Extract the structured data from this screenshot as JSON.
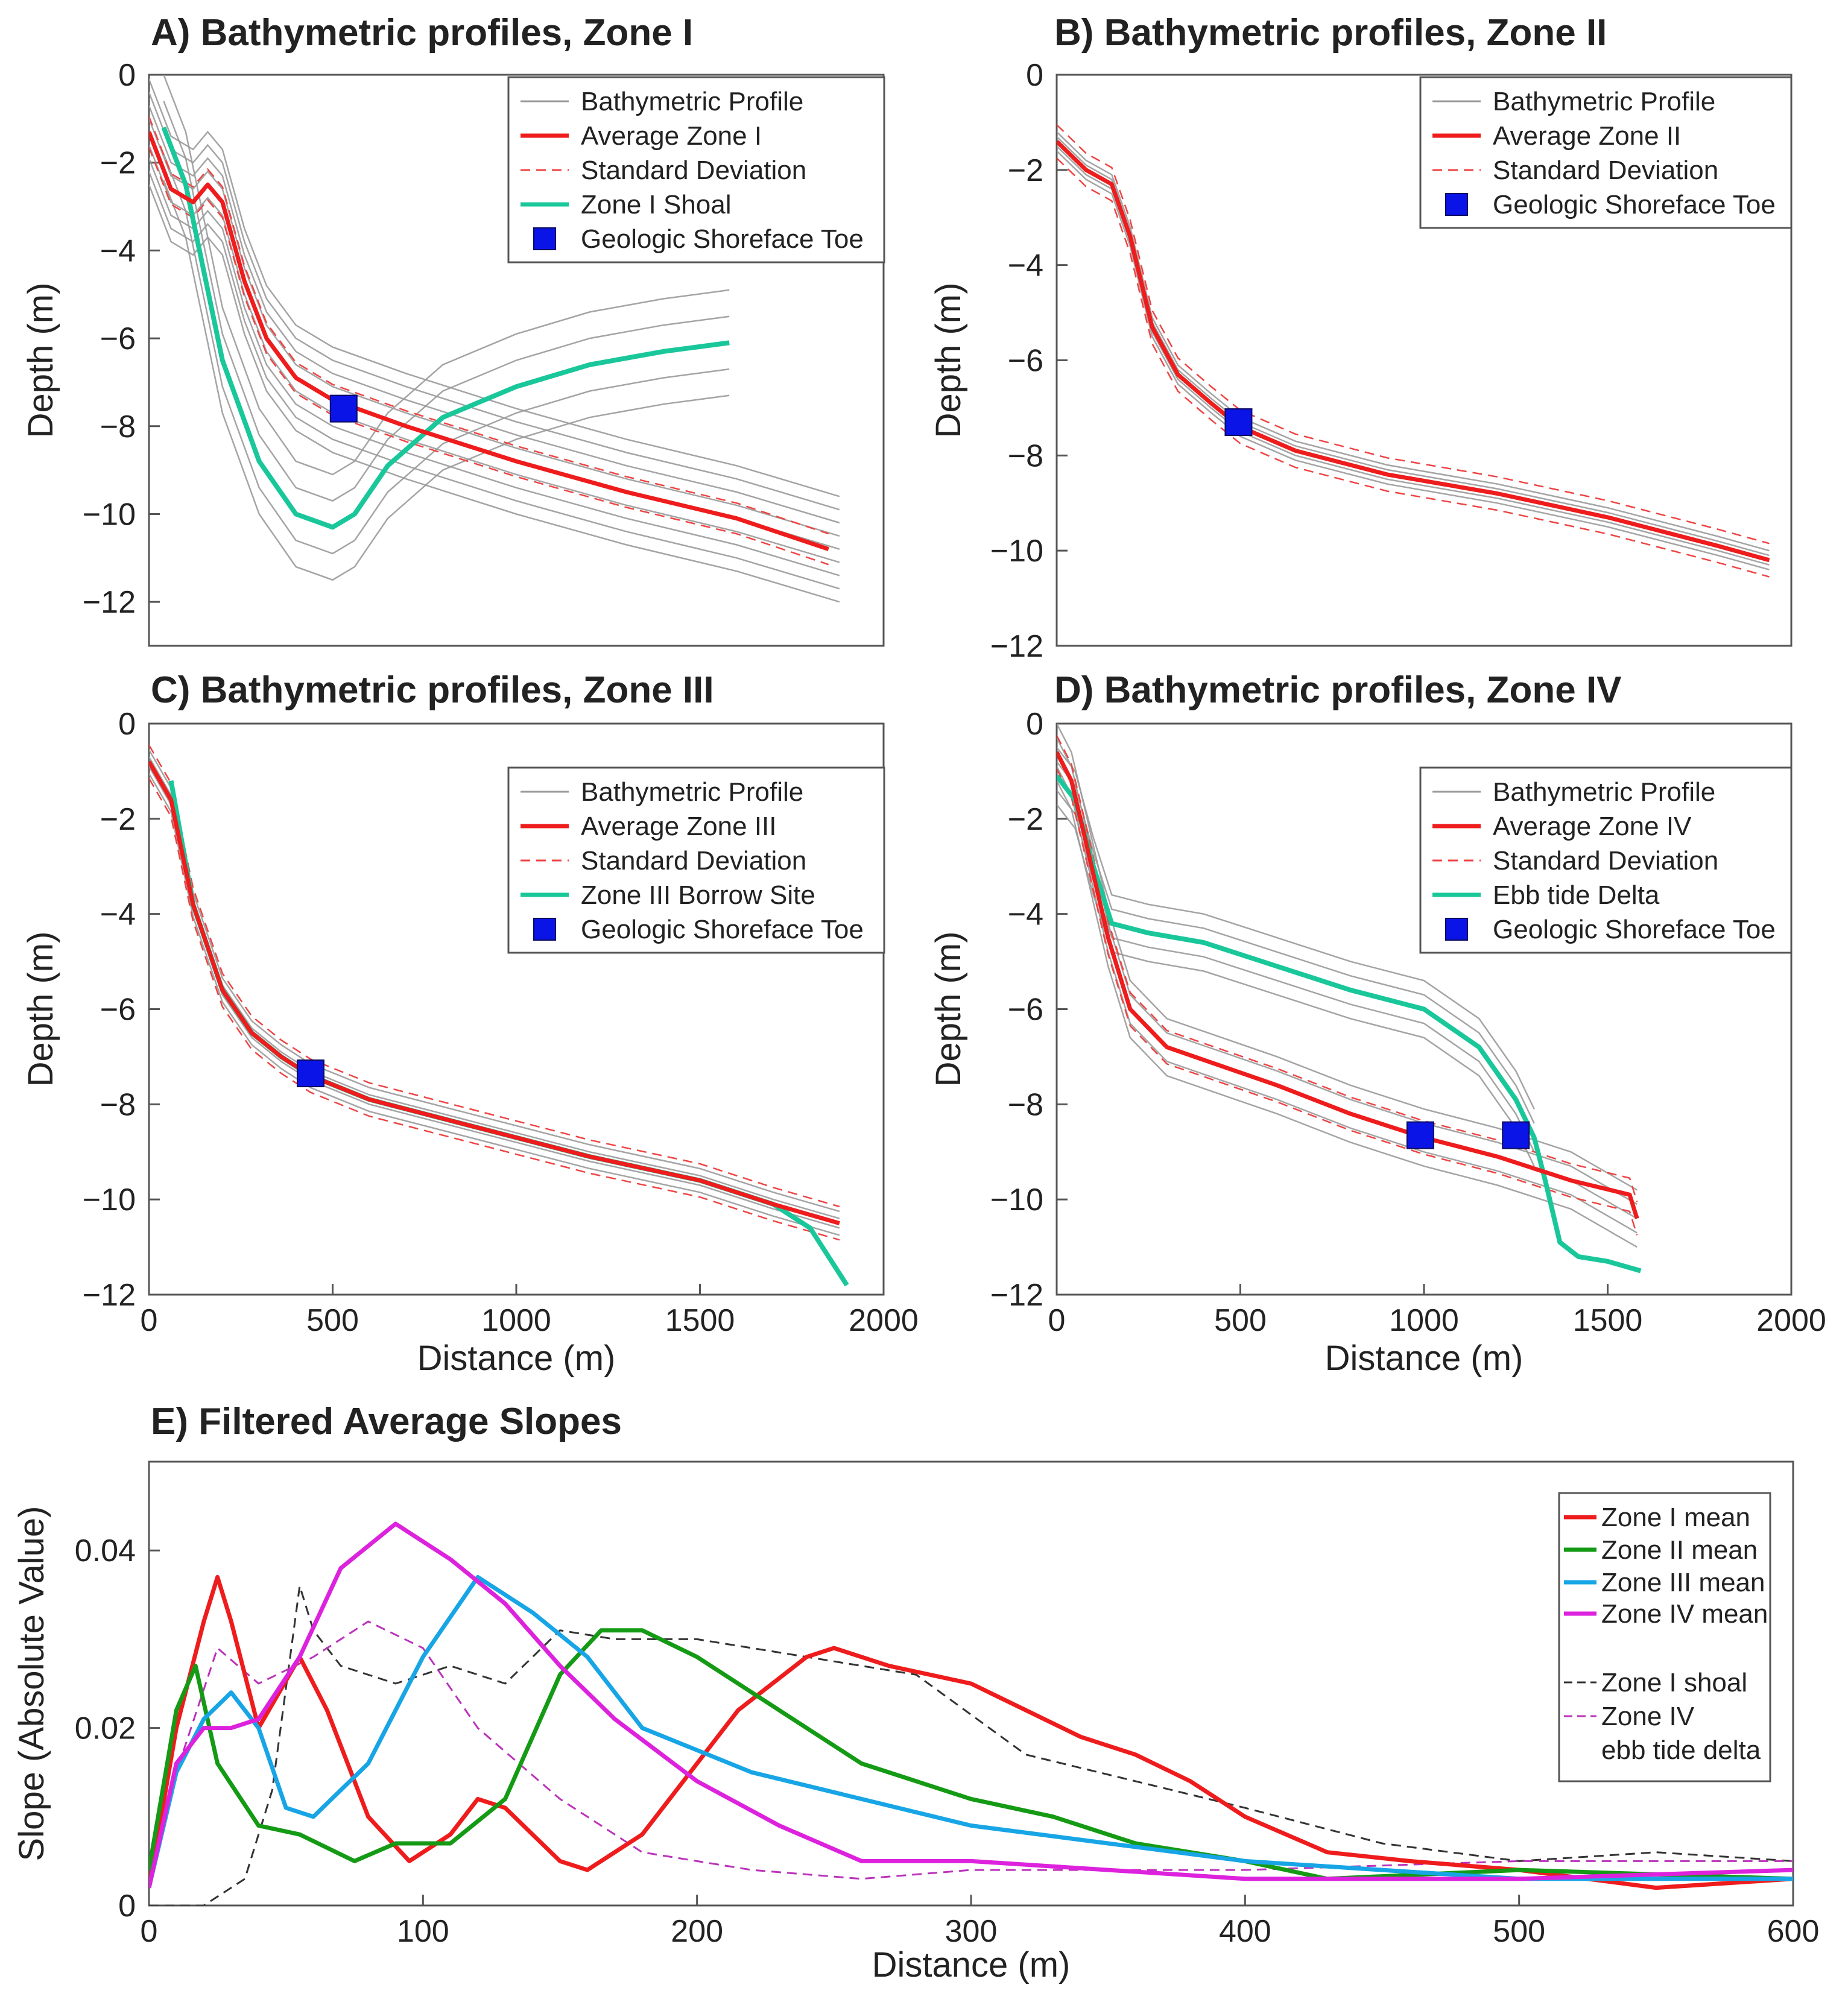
{
  "colors": {
    "profile": "#9a9a9a",
    "average": "#ee1c1c",
    "stddev": "#ee4444",
    "feature": "#19c79a",
    "toe": "#0a14e6",
    "zone1": "#ee1c1c",
    "zone2": "#149a14",
    "zone3": "#17a5e6",
    "zone4": "#dd22dd",
    "shoal": "#333333",
    "delta": "#bb33bb"
  },
  "chart_data": [
    {
      "id": "A",
      "type": "line",
      "title": "A) Bathymetric profiles, Zone I",
      "xlabel": "",
      "ylabel": "Depth (m)",
      "xlim": [
        0,
        2000
      ],
      "ylim": [
        -13,
        0
      ],
      "xticks": [],
      "yticks": [
        0,
        -2,
        -4,
        -6,
        -8,
        -10,
        -12
      ],
      "ytick_labels": [
        "0",
        "−2",
        "−4",
        "−6",
        "−8",
        "−10",
        "−12"
      ],
      "legend": [
        "Bathymetric Profile",
        "Average Zone I",
        "Standard Deviation",
        "Zone I Shoal",
        "Geologic Shoreface Toe"
      ],
      "average": {
        "x": [
          0,
          60,
          120,
          160,
          200,
          260,
          320,
          400,
          500,
          700,
          1000,
          1300,
          1600,
          1850
        ],
        "y": [
          -1.3,
          -2.6,
          -2.9,
          -2.5,
          -2.9,
          -4.7,
          -6.0,
          -6.9,
          -7.4,
          -8.0,
          -8.8,
          -9.5,
          -10.1,
          -10.8
        ]
      },
      "feature": {
        "x": [
          40,
          100,
          200,
          300,
          400,
          500,
          560,
          650,
          800,
          1000,
          1200,
          1400,
          1580
        ],
        "y": [
          -1.2,
          -2.5,
          -6.5,
          -8.8,
          -10.0,
          -10.3,
          -10.0,
          -8.9,
          -7.8,
          -7.1,
          -6.6,
          -6.3,
          -6.1
        ]
      },
      "profile_families": [
        {
          "x": [
            0,
            60,
            120,
            160,
            200,
            260,
            320,
            400,
            500,
            700,
            1000,
            1300,
            1600,
            1880
          ],
          "y": [
            -1.3,
            -2.6,
            -2.9,
            -2.5,
            -2.9,
            -4.7,
            -6.0,
            -6.9,
            -7.4,
            -8.0,
            -8.8,
            -9.5,
            -10.1,
            -10.8
          ],
          "offsets": [
            -1.2,
            -0.9,
            -0.6,
            -0.3,
            0.0,
            0.3,
            0.6,
            0.9,
            1.2
          ]
        },
        {
          "x": [
            40,
            100,
            200,
            300,
            400,
            500,
            560,
            650,
            800,
            1000,
            1200,
            1400,
            1580
          ],
          "y": [
            -1.2,
            -2.5,
            -6.5,
            -8.8,
            -10.0,
            -10.3,
            -10.0,
            -8.9,
            -7.8,
            -7.1,
            -6.6,
            -6.3,
            -6.1
          ],
          "offsets": [
            -1.2,
            -0.6,
            0.0,
            0.6,
            1.2
          ]
        }
      ],
      "toes": [
        {
          "x": 530,
          "y": -7.6
        }
      ]
    },
    {
      "id": "B",
      "type": "line",
      "title": "B) Bathymetric profiles, Zone II",
      "xlabel": "",
      "ylabel": "Depth (m)",
      "xlim": [
        0,
        2000
      ],
      "ylim": [
        -12,
        0
      ],
      "xticks": [],
      "yticks": [
        0,
        -2,
        -4,
        -6,
        -8,
        -10,
        -12
      ],
      "ytick_labels": [
        "0",
        "−2",
        "−4",
        "−6",
        "−8",
        "−10",
        "−12"
      ],
      "legend": [
        "Bathymetric Profile",
        "Average Zone II",
        "Standard Deviation",
        "Geologic Shoreface Toe"
      ],
      "average": {
        "x": [
          0,
          80,
          150,
          200,
          260,
          330,
          420,
          500,
          650,
          900,
          1200,
          1500,
          1800,
          1940
        ],
        "y": [
          -1.4,
          -2.0,
          -2.3,
          -3.4,
          -5.3,
          -6.3,
          -6.9,
          -7.4,
          -7.9,
          -8.4,
          -8.8,
          -9.3,
          -9.9,
          -10.2
        ]
      },
      "feature": null,
      "profile_families": [
        {
          "x": [
            0,
            80,
            150,
            200,
            260,
            330,
            420,
            500,
            650,
            900,
            1200,
            1500,
            1800,
            1940
          ],
          "y": [
            -1.4,
            -2.0,
            -2.3,
            -3.4,
            -5.3,
            -6.3,
            -6.9,
            -7.4,
            -7.9,
            -8.4,
            -8.8,
            -9.3,
            -9.9,
            -10.2
          ],
          "offsets": [
            -0.2,
            -0.1,
            0.0,
            0.1,
            0.2
          ]
        }
      ],
      "toes": [
        {
          "x": 495,
          "y": -7.3
        }
      ]
    },
    {
      "id": "C",
      "type": "line",
      "title": "C) Bathymetric profiles, Zone III",
      "xlabel": "Distance (m)",
      "ylabel": "Depth (m)",
      "xlim": [
        0,
        2000
      ],
      "ylim": [
        -12,
        0
      ],
      "xticks": [
        0,
        500,
        1000,
        1500,
        2000
      ],
      "xtick_labels": [
        "0",
        "500",
        "1000",
        "1500",
        "2000"
      ],
      "yticks": [
        0,
        -2,
        -4,
        -6,
        -8,
        -10,
        -12
      ],
      "ytick_labels": [
        "0",
        "−2",
        "−4",
        "−6",
        "−8",
        "−10",
        "−12"
      ],
      "legend": [
        "Bathymetric Profile",
        "Average Zone III",
        "Standard Deviation",
        "Zone III Borrow Site",
        "Geologic Shoreface Toe"
      ],
      "average": {
        "x": [
          0,
          60,
          120,
          200,
          280,
          360,
          440,
          600,
          900,
          1200,
          1500,
          1700,
          1880
        ],
        "y": [
          -0.8,
          -1.6,
          -3.8,
          -5.6,
          -6.5,
          -7.0,
          -7.4,
          -7.9,
          -8.5,
          -9.1,
          -9.6,
          -10.1,
          -10.5
        ]
      },
      "feature": {
        "x": [
          60,
          120,
          200,
          280,
          360,
          440,
          600,
          900,
          1200,
          1500,
          1700,
          1800,
          1900
        ],
        "y": [
          -1.2,
          -3.8,
          -5.6,
          -6.5,
          -7.0,
          -7.4,
          -7.9,
          -8.5,
          -9.1,
          -9.6,
          -10.1,
          -10.6,
          -11.8
        ]
      },
      "profile_families": [
        {
          "x": [
            0,
            60,
            120,
            200,
            280,
            360,
            440,
            600,
            900,
            1200,
            1500,
            1700,
            1880
          ],
          "y": [
            -0.8,
            -1.6,
            -3.8,
            -5.6,
            -6.5,
            -7.0,
            -7.4,
            -7.9,
            -8.5,
            -9.1,
            -9.6,
            -10.1,
            -10.5
          ],
          "offsets": [
            -0.25,
            -0.1,
            0.0,
            0.1,
            0.25
          ]
        }
      ],
      "toes": [
        {
          "x": 440,
          "y": -7.35
        }
      ]
    },
    {
      "id": "D",
      "type": "line",
      "title": "D) Bathymetric profiles, Zone IV",
      "xlabel": "Distance (m)",
      "ylabel": "Depth (m)",
      "xlim": [
        0,
        2000
      ],
      "ylim": [
        -12,
        0
      ],
      "xticks": [
        0,
        500,
        1000,
        1500,
        2000
      ],
      "xtick_labels": [
        "0",
        "500",
        "1000",
        "1500",
        "2000"
      ],
      "yticks": [
        0,
        -2,
        -4,
        -6,
        -8,
        -10,
        -12
      ],
      "ytick_labels": [
        "0",
        "−2",
        "−4",
        "−6",
        "−8",
        "−10",
        "−12"
      ],
      "legend": [
        "Bathymetric Profile",
        "Average Zone IV",
        "Standard Deviation",
        "Ebb tide Delta",
        "Geologic Shoreface Toe"
      ],
      "average": {
        "x": [
          0,
          40,
          80,
          140,
          200,
          300,
          450,
          600,
          800,
          1000,
          1200,
          1400,
          1560,
          1580
        ],
        "y": [
          -0.6,
          -1.2,
          -2.5,
          -4.5,
          -6.0,
          -6.8,
          -7.2,
          -7.6,
          -8.2,
          -8.7,
          -9.1,
          -9.6,
          -9.9,
          -10.4
        ]
      },
      "feature": {
        "x": [
          0,
          50,
          100,
          150,
          250,
          400,
          600,
          800,
          1000,
          1150,
          1250,
          1300,
          1330,
          1370,
          1420,
          1500,
          1590
        ],
        "y": [
          -1.1,
          -1.6,
          -3.0,
          -4.2,
          -4.4,
          -4.6,
          -5.1,
          -5.6,
          -6.0,
          -6.8,
          -7.9,
          -8.7,
          -9.6,
          -10.9,
          -11.2,
          -11.3,
          -11.5
        ]
      },
      "profile_families": [
        {
          "x": [
            0,
            40,
            80,
            140,
            200,
            300,
            450,
            600,
            800,
            1000,
            1200,
            1400,
            1580
          ],
          "y": [
            -0.6,
            -1.2,
            -2.5,
            -4.5,
            -6.0,
            -6.8,
            -7.2,
            -7.6,
            -8.2,
            -8.7,
            -9.1,
            -9.6,
            -10.4
          ],
          "offsets": [
            -0.6,
            -0.3,
            0.0,
            0.3,
            0.6
          ]
        },
        {
          "x": [
            0,
            50,
            100,
            150,
            250,
            400,
            600,
            800,
            1000,
            1150,
            1250,
            1300
          ],
          "y": [
            -1.1,
            -1.6,
            -3.0,
            -4.2,
            -4.4,
            -4.6,
            -5.1,
            -5.6,
            -6.0,
            -6.8,
            -7.9,
            -8.7
          ],
          "offsets": [
            -0.6,
            -0.3,
            0.0,
            0.3,
            0.6
          ]
        }
      ],
      "toes": [
        {
          "x": 990,
          "y": -8.65
        },
        {
          "x": 1250,
          "y": -8.65
        }
      ]
    },
    {
      "id": "E",
      "type": "line",
      "title": "E) Filtered Average Slopes",
      "xlabel": "Distance (m)",
      "ylabel": "Slope (Absolute Value)",
      "xlim": [
        0,
        600
      ],
      "ylim": [
        0,
        0.05
      ],
      "xticks": [
        0,
        100,
        200,
        300,
        400,
        500,
        600
      ],
      "xtick_labels": [
        "0",
        "100",
        "200",
        "300",
        "400",
        "500",
        "600"
      ],
      "yticks": [
        0,
        0.02,
        0.04
      ],
      "ytick_labels": [
        "0",
        "0.02",
        "0.04"
      ],
      "legend": [
        "Zone I mean",
        "Zone II mean",
        "Zone III mean",
        "Zone IV mean",
        "Zone I shoal",
        "Zone IV",
        "ebb tide delta"
      ],
      "series": [
        {
          "name": "Zone I mean",
          "x": [
            0,
            10,
            20,
            25,
            30,
            40,
            55,
            65,
            80,
            95,
            110,
            120,
            130,
            150,
            160,
            180,
            200,
            215,
            240,
            250,
            270,
            300,
            320,
            340,
            360,
            380,
            400,
            430,
            460,
            500,
            550,
            600
          ],
          "y": [
            0.002,
            0.02,
            0.032,
            0.037,
            0.032,
            0.02,
            0.028,
            0.022,
            0.01,
            0.005,
            0.008,
            0.012,
            0.011,
            0.005,
            0.004,
            0.008,
            0.016,
            0.022,
            0.028,
            0.029,
            0.027,
            0.025,
            0.022,
            0.019,
            0.017,
            0.014,
            0.01,
            0.006,
            0.005,
            0.004,
            0.002,
            0.003
          ]
        },
        {
          "name": "Zone II mean",
          "x": [
            0,
            10,
            17,
            25,
            40,
            55,
            75,
            90,
            110,
            130,
            150,
            165,
            180,
            200,
            220,
            260,
            300,
            330,
            360,
            400,
            430,
            500,
            600
          ],
          "y": [
            0.004,
            0.022,
            0.027,
            0.016,
            0.009,
            0.008,
            0.005,
            0.007,
            0.007,
            0.012,
            0.026,
            0.031,
            0.031,
            0.028,
            0.024,
            0.016,
            0.012,
            0.01,
            0.007,
            0.005,
            0.003,
            0.004,
            0.003
          ]
        },
        {
          "name": "Zone III mean",
          "x": [
            0,
            10,
            20,
            30,
            40,
            50,
            60,
            80,
            100,
            120,
            140,
            160,
            180,
            220,
            260,
            300,
            350,
            400,
            450,
            500,
            600
          ],
          "y": [
            0.002,
            0.015,
            0.021,
            0.024,
            0.02,
            0.011,
            0.01,
            0.016,
            0.028,
            0.037,
            0.033,
            0.028,
            0.02,
            0.015,
            0.012,
            0.009,
            0.007,
            0.005,
            0.004,
            0.003,
            0.003
          ]
        },
        {
          "name": "Zone IV mean",
          "x": [
            0,
            10,
            20,
            30,
            40,
            55,
            70,
            90,
            110,
            130,
            150,
            170,
            200,
            230,
            260,
            300,
            350,
            400,
            500,
            600
          ],
          "y": [
            0.002,
            0.016,
            0.02,
            0.02,
            0.021,
            0.028,
            0.038,
            0.043,
            0.039,
            0.034,
            0.027,
            0.021,
            0.014,
            0.009,
            0.005,
            0.005,
            0.004,
            0.003,
            0.003,
            0.004
          ]
        },
        {
          "name": "Zone I shoal",
          "x": [
            0,
            20,
            35,
            45,
            55,
            60,
            70,
            90,
            110,
            130,
            150,
            170,
            200,
            240,
            280,
            320,
            360,
            400,
            450,
            500,
            550,
            600
          ],
          "y": [
            0.0,
            0.0,
            0.003,
            0.013,
            0.036,
            0.031,
            0.027,
            0.025,
            0.027,
            0.025,
            0.031,
            0.03,
            0.03,
            0.028,
            0.026,
            0.017,
            0.014,
            0.011,
            0.007,
            0.005,
            0.006,
            0.005
          ]
        },
        {
          "name": "Zone IV ebb tide delta",
          "x": [
            0,
            10,
            25,
            40,
            60,
            80,
            100,
            120,
            150,
            180,
            220,
            260,
            300,
            350,
            400,
            500,
            600
          ],
          "y": [
            0.002,
            0.015,
            0.029,
            0.025,
            0.028,
            0.032,
            0.029,
            0.02,
            0.012,
            0.006,
            0.004,
            0.003,
            0.004,
            0.004,
            0.004,
            0.005,
            0.005
          ]
        }
      ]
    }
  ]
}
